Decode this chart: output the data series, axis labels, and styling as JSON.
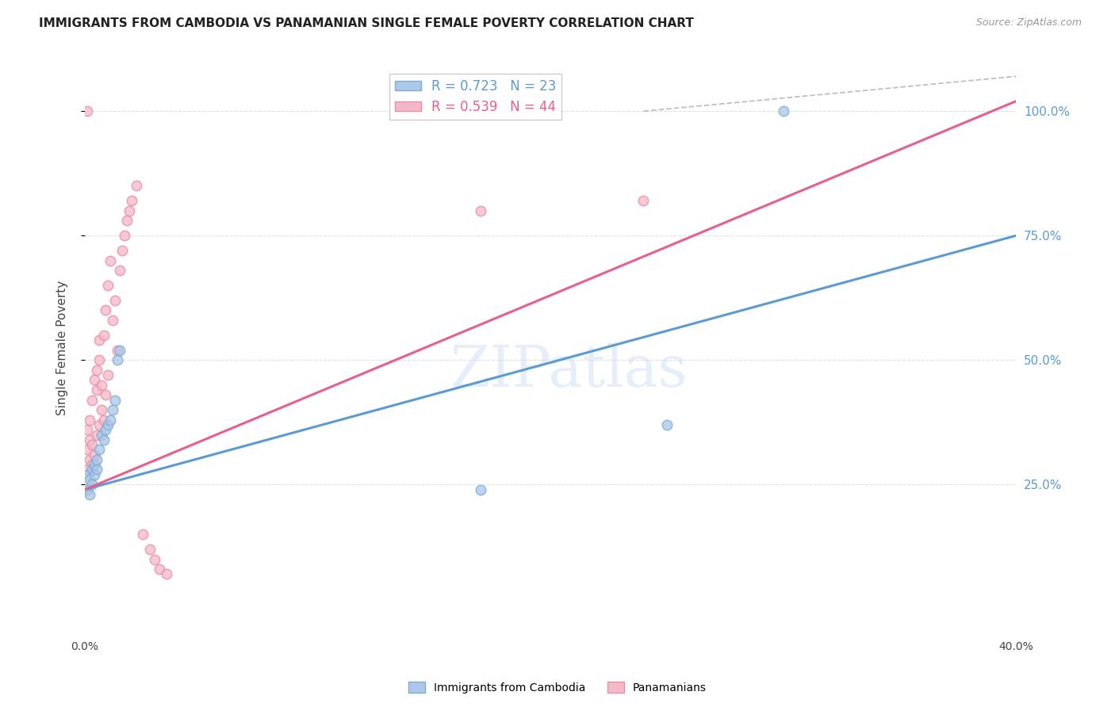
{
  "title": "IMMIGRANTS FROM CAMBODIA VS PANAMANIAN SINGLE FEMALE POVERTY CORRELATION CHART",
  "source": "Source: ZipAtlas.com",
  "ylabel": "Single Female Poverty",
  "right_yticks": [
    "100.0%",
    "75.0%",
    "50.0%",
    "25.0%"
  ],
  "right_ytick_vals": [
    1.0,
    0.75,
    0.5,
    0.25
  ],
  "xlim": [
    0.0,
    0.4
  ],
  "ylim": [
    -0.05,
    1.1
  ],
  "watermark": "ZIPatlas",
  "bg_color": "#ffffff",
  "grid_color": "#e0e0e0",
  "cambodia_x": [
    0.001,
    0.001,
    0.002,
    0.002,
    0.003,
    0.003,
    0.004,
    0.004,
    0.005,
    0.005,
    0.006,
    0.007,
    0.008,
    0.009,
    0.01,
    0.011,
    0.012,
    0.013,
    0.014,
    0.015,
    0.17,
    0.25,
    0.3
  ],
  "cambodia_y": [
    0.27,
    0.24,
    0.26,
    0.23,
    0.28,
    0.25,
    0.27,
    0.29,
    0.28,
    0.3,
    0.32,
    0.35,
    0.34,
    0.36,
    0.37,
    0.38,
    0.4,
    0.42,
    0.5,
    0.52,
    0.24,
    0.37,
    1.0
  ],
  "panama_x": [
    0.001,
    0.001,
    0.001,
    0.002,
    0.002,
    0.002,
    0.003,
    0.003,
    0.003,
    0.004,
    0.004,
    0.005,
    0.005,
    0.005,
    0.006,
    0.006,
    0.006,
    0.007,
    0.007,
    0.008,
    0.008,
    0.009,
    0.009,
    0.01,
    0.01,
    0.011,
    0.012,
    0.013,
    0.014,
    0.015,
    0.016,
    0.017,
    0.018,
    0.019,
    0.02,
    0.022,
    0.025,
    0.028,
    0.03,
    0.032,
    0.035,
    0.17,
    0.24,
    0.001
  ],
  "panama_y": [
    0.28,
    0.32,
    0.36,
    0.3,
    0.34,
    0.38,
    0.29,
    0.33,
    0.42,
    0.31,
    0.46,
    0.35,
    0.44,
    0.48,
    0.37,
    0.5,
    0.54,
    0.4,
    0.45,
    0.38,
    0.55,
    0.6,
    0.43,
    0.47,
    0.65,
    0.7,
    0.58,
    0.62,
    0.52,
    0.68,
    0.72,
    0.75,
    0.78,
    0.8,
    0.82,
    0.85,
    0.15,
    0.12,
    0.1,
    0.08,
    0.07,
    0.8,
    0.82,
    1.0
  ],
  "blue_line_x": [
    0.0,
    0.4
  ],
  "blue_line_y": [
    0.24,
    0.75
  ],
  "pink_line_x": [
    0.0,
    0.4
  ],
  "pink_line_y": [
    0.24,
    1.02
  ],
  "dash_line_x": [
    0.24,
    0.4
  ],
  "dash_line_y": [
    1.0,
    1.07
  ],
  "line_blue_color": "#5b9bd5",
  "line_pink_color": "#e8608a",
  "dot_blue_color": "#aec6e8",
  "dot_pink_color": "#f5b8c8",
  "dot_size": 80,
  "dot_alpha": 0.75,
  "dot_linewidth": 1.2,
  "dot_edgecolor_blue": "#7aafd4",
  "dot_edgecolor_pink": "#e890a8",
  "legend_blue_label": "R = 0.723   N = 23",
  "legend_pink_label": "R = 0.539   N = 44",
  "legend_blue_color": "#5b9bd5",
  "legend_pink_color": "#e8608a",
  "bottom_legend_blue": "Immigrants from Cambodia",
  "bottom_legend_pink": "Panamanians"
}
